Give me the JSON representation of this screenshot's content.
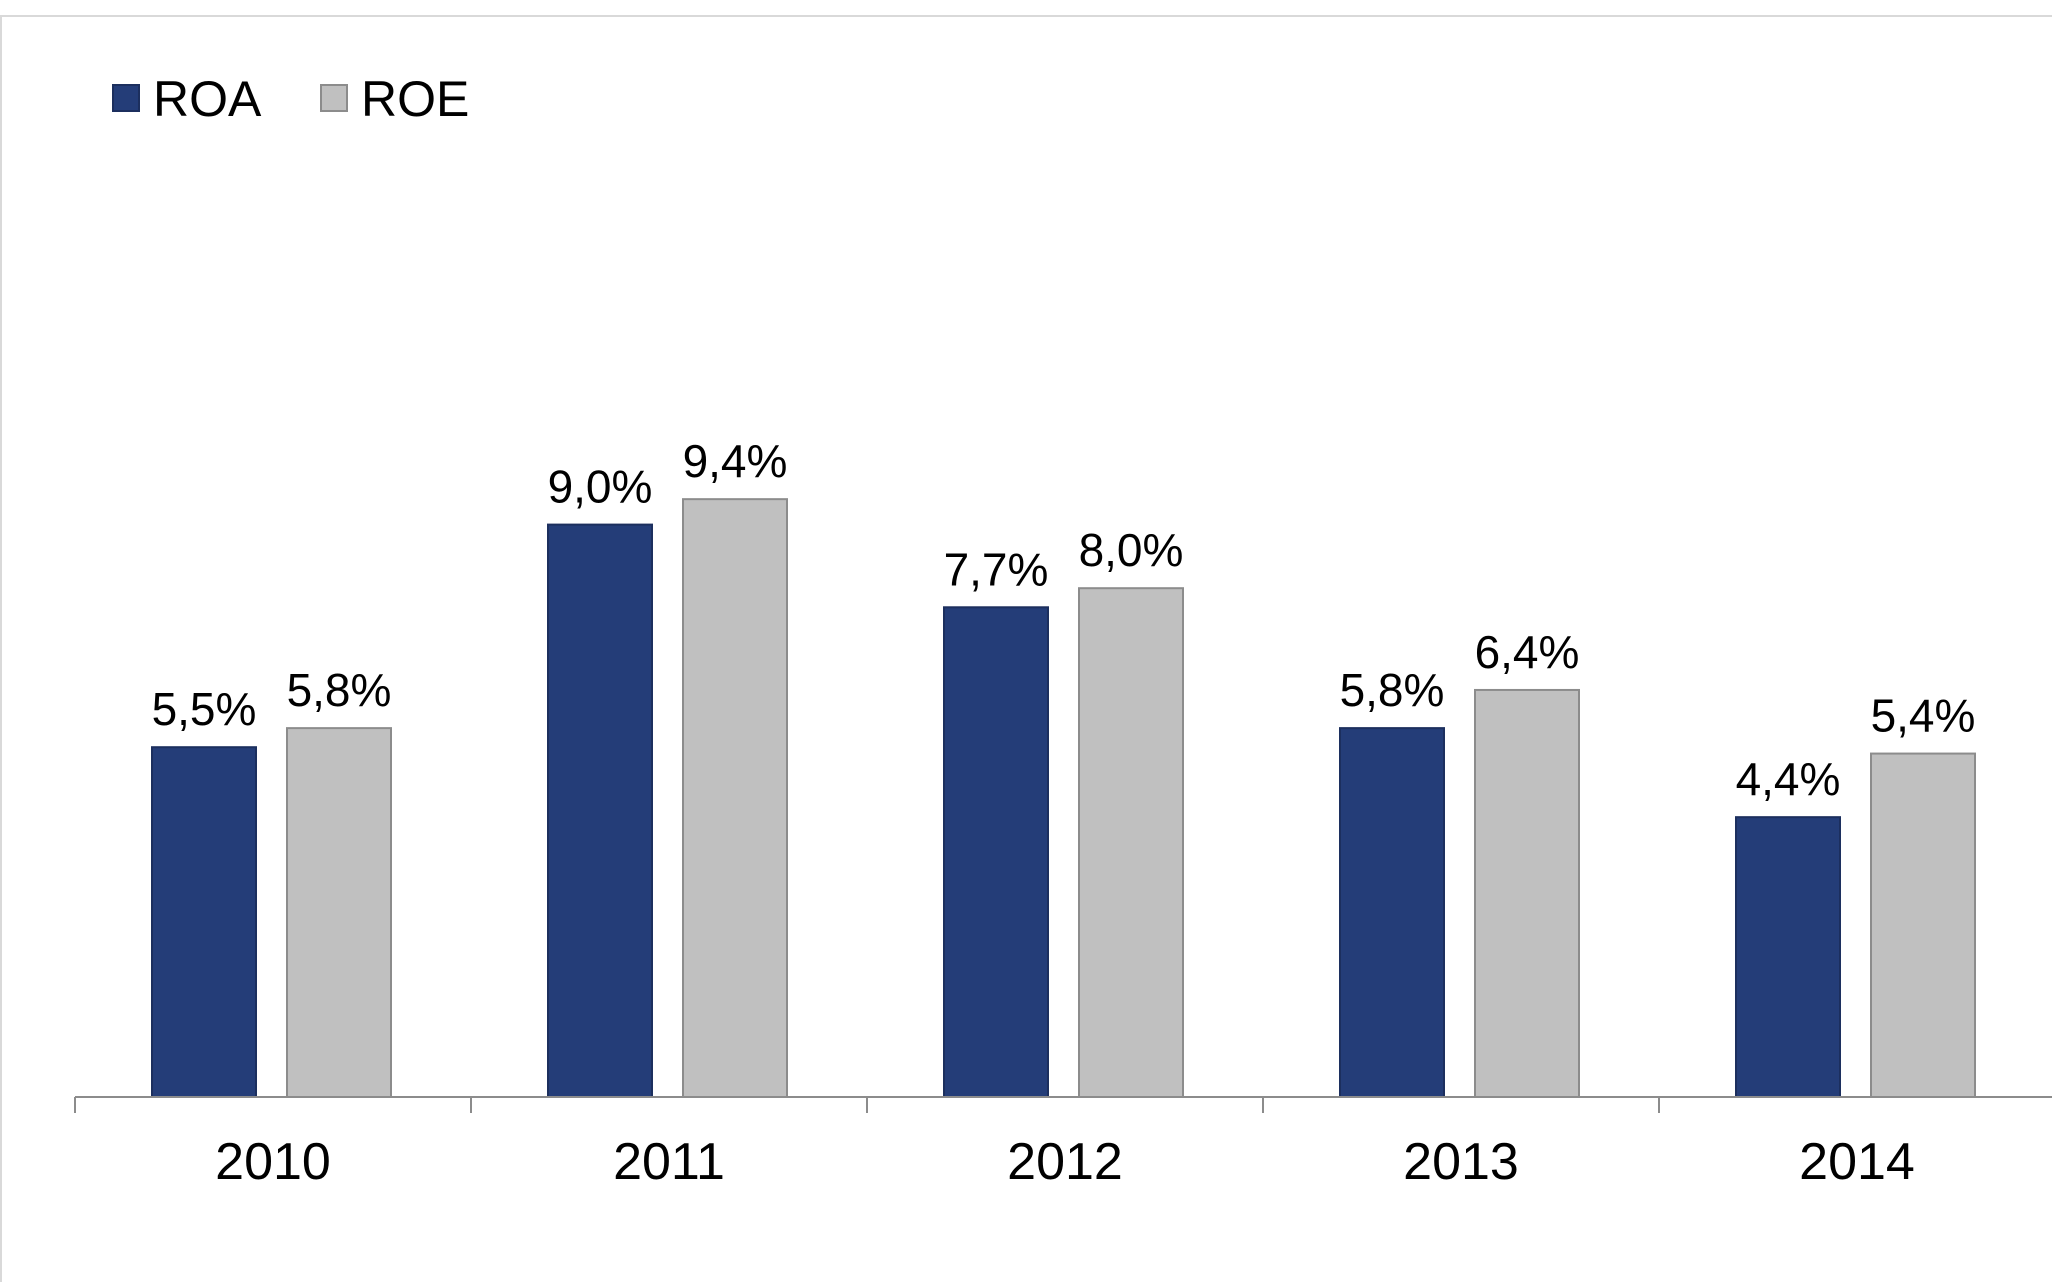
{
  "chart_data": {
    "type": "bar",
    "categories": [
      "2010",
      "2011",
      "2012",
      "2013",
      "2014"
    ],
    "series": [
      {
        "name": "ROA",
        "color": "#243d78",
        "values": [
          5.5,
          9.0,
          7.7,
          5.8,
          4.4
        ],
        "labels": [
          "5,5%",
          "9,0%",
          "7,7%",
          "5,8%",
          "4,4%"
        ]
      },
      {
        "name": "ROE",
        "color": "#c0c0c0",
        "values": [
          5.8,
          9.4,
          8.0,
          6.4,
          5.4
        ],
        "labels": [
          "5,8%",
          "9,4%",
          "8,0%",
          "6,4%",
          "5,4%"
        ]
      }
    ],
    "title": "",
    "xlabel": "",
    "ylabel": "",
    "ylim": [
      0,
      10
    ],
    "grid": false,
    "legend": "top-left",
    "unit": "%"
  }
}
